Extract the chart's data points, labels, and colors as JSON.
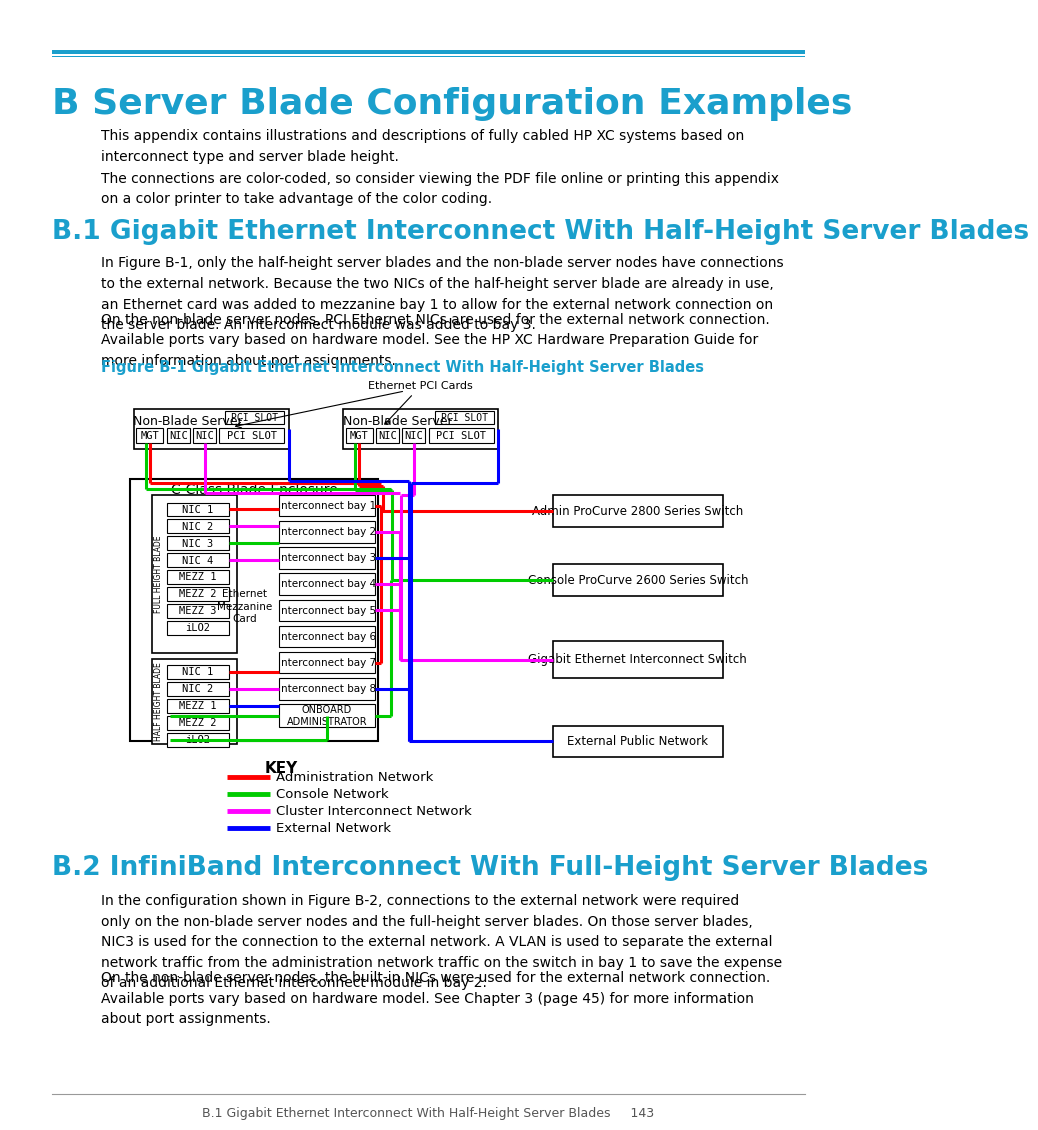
{
  "page_title": "B Server Blade Configuration Examples",
  "section1_title": "B.1 Gigabit Ethernet Interconnect With Half-Height Server Blades",
  "section2_title": "B.2 InfiniBand Interconnect With Full-Height Server Blades",
  "figure_title": "Figure B-1 Gigabit Ethernet Interconnect With Half-Height Server Blades",
  "title_color": "#1a9fcc",
  "body_text_color": "#000000",
  "figure_title_color": "#1a9fcc",
  "header_line_color": "#1a9fcc",
  "bg_color": "#ffffff",
  "text_intro1": "This appendix contains illustrations and descriptions of fully cabled HP XC systems based on\ninterconnect type and server blade height.",
  "text_intro2": "The connections are color-coded, so consider viewing the PDF file online or printing this appendix\non a color printer to take advantage of the color coding.",
  "text_b1_para1_line1": "In ",
  "text_b1_para1_link": "Figure B-1",
  "text_b1_para1_rest": ", only the half-height server blades and the non-blade server nodes have connections\nto the external network. Because the two NICs of the half-height server blade are already in use,\nan Ethernet card was added to mezzanine bay 1 to allow for the external network connection on\nthe server blade. An interconnect module was added to bay 3.",
  "text_b1_para2_line1": "On the non-blade server nodes, PCI Ethernet NICs are used for the external network connection.\nAvailable ports vary based on hardware model. See the ",
  "text_b1_para2_italic": "HP XC Hardware Preparation Guide",
  "text_b1_para2_rest": " for\nmore information about port assignments.",
  "text_b2_para1_line1": "In the configuration shown in ",
  "text_b2_para1_link": "Figure B-2",
  "text_b2_para1_rest": ", connections to the external network were required\nonly on the non-blade server nodes and the full-height server blades. On those server blades,\nNIC3 is used for the connection to the external network. A VLAN is used to separate the external\nnetwork traffic from the administration network traffic on the switch in bay 1 to save the expense\nof an additional Ethernet interconnect module in bay 2.",
  "text_b2_para2_line1": "On the non-blade server nodes, the built-in NICs were used for the external network connection.\nAvailable ports vary based on hardware model. See ",
  "text_b2_para2_link": "Chapter 3 (page 45)",
  "text_b2_para2_rest": " for more information\nabout port assignments.",
  "footer_text": "B.1 Gigabit Ethernet Interconnect With Half-Height Server Blades     143",
  "key_items": [
    {
      "label": "Administration Network",
      "color": "#ff0000"
    },
    {
      "label": "Console Network",
      "color": "#00cc00"
    },
    {
      "label": "Cluster Interconnect Network",
      "color": "#ff00ff"
    },
    {
      "label": "External Network",
      "color": "#0000ff"
    }
  ],
  "RED": "#ff0000",
  "GREEN": "#00cc00",
  "MAGENTA": "#ff00ff",
  "BLUE": "#0000ff"
}
